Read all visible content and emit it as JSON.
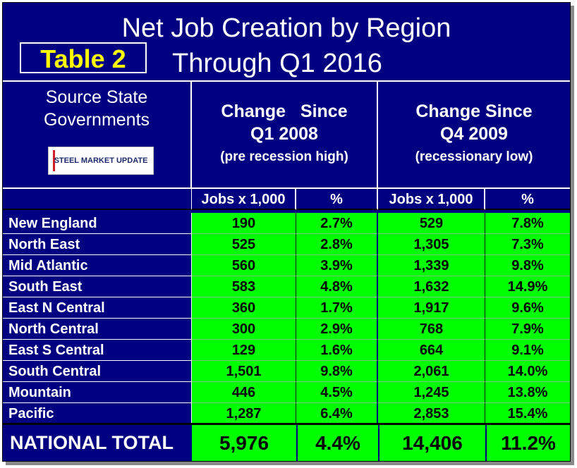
{
  "title": {
    "line1": "Net Job Creation by Region",
    "line2": "Through Q1 2016",
    "badge": "Table 2"
  },
  "source": {
    "line1": "Source State",
    "line2": "Governments",
    "logo_text": "STEEL MARKET UPDATE"
  },
  "col_group_a": {
    "line1": "Change   Since",
    "line2": "Q1 2008",
    "line3": "(pre recession high)"
  },
  "col_group_b": {
    "line1": "Change Since",
    "line2": "Q4 2009",
    "line3": "(recessionary low)"
  },
  "columns": [
    "Jobs x 1,000",
    "%",
    "Jobs x 1,000",
    "%"
  ],
  "rows": [
    {
      "region": "New England",
      "a_jobs": "190",
      "a_pct": "2.7%",
      "b_jobs": "529",
      "b_pct": "7.8%"
    },
    {
      "region": "North East",
      "a_jobs": "525",
      "a_pct": "2.8%",
      "b_jobs": "1,305",
      "b_pct": "7.3%"
    },
    {
      "region": "Mid Atlantic",
      "a_jobs": "560",
      "a_pct": "3.9%",
      "b_jobs": "1,339",
      "b_pct": "9.8%"
    },
    {
      "region": "South East",
      "a_jobs": "583",
      "a_pct": "4.8%",
      "b_jobs": "1,632",
      "b_pct": "14.9%"
    },
    {
      "region": "East N Central",
      "a_jobs": "360",
      "a_pct": "1.7%",
      "b_jobs": "1,917",
      "b_pct": "9.6%"
    },
    {
      "region": "North Central",
      "a_jobs": "300",
      "a_pct": "2.9%",
      "b_jobs": "768",
      "b_pct": "7.9%"
    },
    {
      "region": "East S Central",
      "a_jobs": "129",
      "a_pct": "1.6%",
      "b_jobs": "664",
      "b_pct": "9.1%"
    },
    {
      "region": "South Central",
      "a_jobs": "1,501",
      "a_pct": "9.8%",
      "b_jobs": "2,061",
      "b_pct": "14.0%"
    },
    {
      "region": "Mountain",
      "a_jobs": "446",
      "a_pct": "4.5%",
      "b_jobs": "1,245",
      "b_pct": "13.8%"
    },
    {
      "region": "Pacific",
      "a_jobs": "1,287",
      "a_pct": "6.4%",
      "b_jobs": "2,853",
      "b_pct": "15.4%"
    }
  ],
  "total": {
    "label": "NATIONAL TOTAL",
    "a_jobs": "5,976",
    "a_pct": "4.4%",
    "b_jobs": "14,406",
    "b_pct": "11.2%"
  },
  "colors": {
    "background": "#000080",
    "data_fill": "#00ff00",
    "badge_text": "#ffff00",
    "text": "#ffffff"
  }
}
